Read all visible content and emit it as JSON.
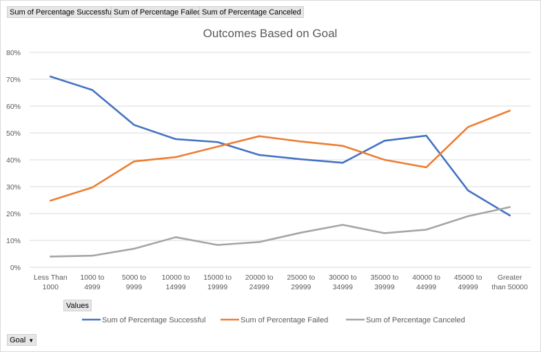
{
  "pivot_fields": {
    "series_buttons": [
      "Sum of Percentage Successful",
      "Sum of Percentage Failed",
      "Sum of Percentage Canceled"
    ],
    "values_label": "Values",
    "axis_field_label": "Goal"
  },
  "colors": {
    "successful": "#4472c4",
    "failed": "#ed7d31",
    "canceled": "#a5a5a5",
    "grid": "#d9d9d9",
    "text": "#595959"
  },
  "icons": {
    "dropdown": "chevron-down-icon"
  },
  "chart_data": {
    "type": "line",
    "title": "Outcomes Based on Goal",
    "xlabel": "",
    "ylabel": "",
    "ylim": [
      0,
      0.8
    ],
    "yticks": [
      "0%",
      "10%",
      "20%",
      "30%",
      "40%",
      "50%",
      "60%",
      "70%",
      "80%"
    ],
    "grid": true,
    "legend_position": "bottom",
    "categories": [
      [
        "Less Than",
        "1000"
      ],
      [
        "1000 to",
        "4999"
      ],
      [
        "5000 to",
        "9999"
      ],
      [
        "10000 to",
        "14999"
      ],
      [
        "15000 to",
        "19999"
      ],
      [
        "20000 to",
        "24999"
      ],
      [
        "25000 to",
        "29999"
      ],
      [
        "30000 to",
        "34999"
      ],
      [
        "35000 to",
        "39999"
      ],
      [
        "40000 to",
        "44999"
      ],
      [
        "45000 to",
        "49999"
      ],
      [
        "Greater",
        "than 50000"
      ]
    ],
    "series": [
      {
        "name": "Sum of Percentage Successful",
        "color": "#4472c4",
        "values": [
          0.71,
          0.66,
          0.53,
          0.477,
          0.466,
          0.418,
          0.402,
          0.389,
          0.471,
          0.49,
          0.286,
          0.193
        ]
      },
      {
        "name": "Sum of Percentage Failed",
        "color": "#ed7d31",
        "values": [
          0.248,
          0.297,
          0.394,
          0.41,
          0.449,
          0.488,
          0.468,
          0.452,
          0.4,
          0.372,
          0.522,
          0.583
        ]
      },
      {
        "name": "Sum of Percentage Canceled",
        "color": "#a5a5a5",
        "values": [
          0.04,
          0.043,
          0.069,
          0.112,
          0.083,
          0.094,
          0.129,
          0.158,
          0.127,
          0.14,
          0.19,
          0.224
        ]
      }
    ]
  }
}
